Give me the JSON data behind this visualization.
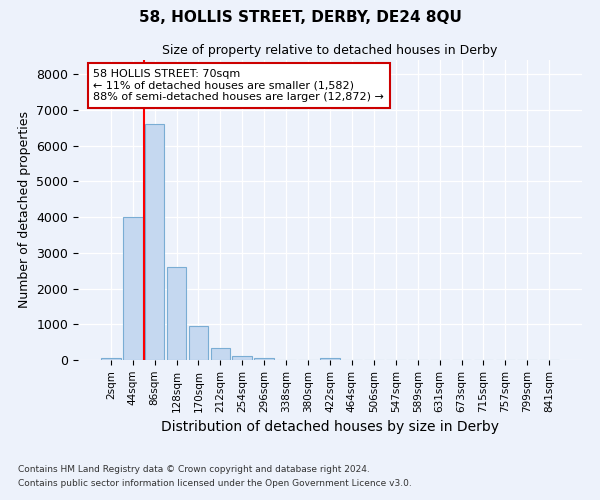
{
  "title": "58, HOLLIS STREET, DERBY, DE24 8QU",
  "subtitle": "Size of property relative to detached houses in Derby",
  "xlabel": "Distribution of detached houses by size in Derby",
  "ylabel": "Number of detached properties",
  "bar_labels": [
    "2sqm",
    "44sqm",
    "86sqm",
    "128sqm",
    "170sqm",
    "212sqm",
    "254sqm",
    "296sqm",
    "338sqm",
    "380sqm",
    "422sqm",
    "464sqm",
    "506sqm",
    "547sqm",
    "589sqm",
    "631sqm",
    "673sqm",
    "715sqm",
    "757sqm",
    "799sqm",
    "841sqm"
  ],
  "bar_values": [
    50,
    4000,
    6600,
    2600,
    950,
    325,
    125,
    50,
    10,
    10,
    50,
    0,
    0,
    0,
    0,
    0,
    0,
    0,
    0,
    0,
    0
  ],
  "bar_color": "#c5d8f0",
  "bar_edge_color": "#7aadd4",
  "red_line_index": 1.5,
  "annotation_text": "58 HOLLIS STREET: 70sqm\n← 11% of detached houses are smaller (1,582)\n88% of semi-detached houses are larger (12,872) →",
  "annotation_box_color": "#ffffff",
  "annotation_box_edge": "#cc0000",
  "ylim": [
    0,
    8400
  ],
  "yticks": [
    0,
    1000,
    2000,
    3000,
    4000,
    5000,
    6000,
    7000,
    8000
  ],
  "footer1": "Contains HM Land Registry data © Crown copyright and database right 2024.",
  "footer2": "Contains public sector information licensed under the Open Government Licence v3.0.",
  "bg_color": "#edf2fb",
  "grid_color": "#ffffff",
  "title_fontsize": 11,
  "subtitle_fontsize": 9,
  "ylabel_fontsize": 9,
  "xlabel_fontsize": 10
}
